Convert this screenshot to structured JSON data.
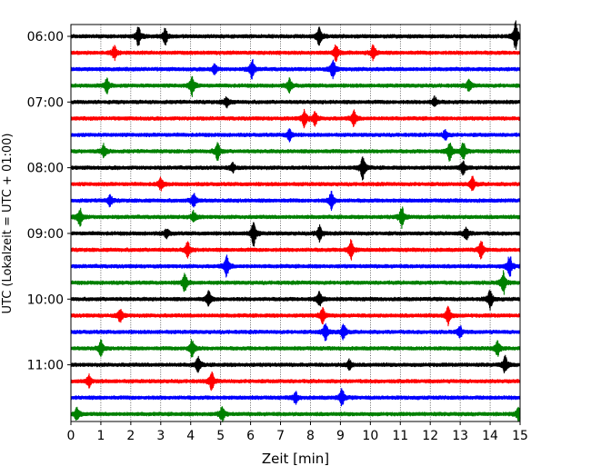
{
  "chart_data": {
    "type": "line",
    "title": "",
    "xlabel": "Zeit  [min]",
    "ylabel": "UTC (Lokalzeit = UTC + 01:00)",
    "xlim": [
      0,
      15
    ],
    "x_ticks": [
      "0",
      "1",
      "2",
      "3",
      "4",
      "5",
      "6",
      "7",
      "8",
      "9",
      "10",
      "11",
      "12",
      "13",
      "14",
      "15"
    ],
    "y_ticks": [
      "06:00",
      "07:00",
      "08:00",
      "09:00",
      "10:00",
      "11:00"
    ],
    "grid": "vertical dotted lines at every minute",
    "trace_colors": [
      "#000000",
      "#ff0000",
      "#0000ff",
      "#008000"
    ],
    "traces": [
      {
        "start": "06:00",
        "color": "#000000",
        "events": [
          {
            "t": 2.25,
            "a": 1.0
          },
          {
            "t": 3.15,
            "a": 0.9
          },
          {
            "t": 8.3,
            "a": 1.1
          },
          {
            "t": 14.85,
            "a": 1.5
          }
        ]
      },
      {
        "start": "06:15",
        "color": "#ff0000",
        "events": [
          {
            "t": 1.45,
            "a": 0.7
          },
          {
            "t": 8.85,
            "a": 0.8
          },
          {
            "t": 10.1,
            "a": 0.8
          }
        ]
      },
      {
        "start": "06:30",
        "color": "#0000ff",
        "events": [
          {
            "t": 6.05,
            "a": 1.0
          },
          {
            "t": 8.75,
            "a": 1.0
          },
          {
            "t": 4.8,
            "a": 0.5
          }
        ]
      },
      {
        "start": "06:45",
        "color": "#008000",
        "events": [
          {
            "t": 1.2,
            "a": 0.8
          },
          {
            "t": 4.05,
            "a": 1.0
          },
          {
            "t": 7.3,
            "a": 0.7
          },
          {
            "t": 13.3,
            "a": 0.6
          }
        ]
      },
      {
        "start": "07:00",
        "color": "#000000",
        "events": [
          {
            "t": 5.2,
            "a": 0.6
          },
          {
            "t": 12.15,
            "a": 0.5
          }
        ]
      },
      {
        "start": "07:15",
        "color": "#ff0000",
        "events": [
          {
            "t": 7.8,
            "a": 0.9
          },
          {
            "t": 8.15,
            "a": 0.7
          },
          {
            "t": 9.45,
            "a": 0.8
          }
        ]
      },
      {
        "start": "07:30",
        "color": "#0000ff",
        "events": [
          {
            "t": 7.3,
            "a": 0.6
          },
          {
            "t": 12.5,
            "a": 0.5
          }
        ]
      },
      {
        "start": "07:45",
        "color": "#008000",
        "events": [
          {
            "t": 1.1,
            "a": 0.7
          },
          {
            "t": 4.9,
            "a": 0.9
          },
          {
            "t": 12.65,
            "a": 1.0
          },
          {
            "t": 13.1,
            "a": 0.9
          }
        ]
      },
      {
        "start": "08:00",
        "color": "#000000",
        "events": [
          {
            "t": 9.75,
            "a": 1.3
          },
          {
            "t": 13.1,
            "a": 0.7
          },
          {
            "t": 5.4,
            "a": 0.5
          }
        ]
      },
      {
        "start": "08:15",
        "color": "#ff0000",
        "events": [
          {
            "t": 3.0,
            "a": 0.6
          },
          {
            "t": 13.4,
            "a": 0.8
          }
        ]
      },
      {
        "start": "08:30",
        "color": "#0000ff",
        "events": [
          {
            "t": 1.3,
            "a": 0.6
          },
          {
            "t": 4.1,
            "a": 0.8
          },
          {
            "t": 8.7,
            "a": 0.9
          }
        ]
      },
      {
        "start": "08:45",
        "color": "#008000",
        "events": [
          {
            "t": 0.3,
            "a": 1.0
          },
          {
            "t": 4.1,
            "a": 0.6
          },
          {
            "t": 11.05,
            "a": 1.1
          }
        ]
      },
      {
        "start": "09:00",
        "color": "#000000",
        "events": [
          {
            "t": 6.1,
            "a": 1.3
          },
          {
            "t": 8.3,
            "a": 0.8
          },
          {
            "t": 13.2,
            "a": 0.7
          },
          {
            "t": 3.2,
            "a": 0.5
          }
        ]
      },
      {
        "start": "09:15",
        "color": "#ff0000",
        "events": [
          {
            "t": 3.9,
            "a": 0.8
          },
          {
            "t": 9.35,
            "a": 1.0
          },
          {
            "t": 13.7,
            "a": 0.9
          }
        ]
      },
      {
        "start": "09:30",
        "color": "#0000ff",
        "events": [
          {
            "t": 5.2,
            "a": 1.1
          },
          {
            "t": 14.65,
            "a": 1.2
          }
        ]
      },
      {
        "start": "09:45",
        "color": "#008000",
        "events": [
          {
            "t": 3.8,
            "a": 0.9
          },
          {
            "t": 14.45,
            "a": 1.2
          }
        ]
      },
      {
        "start": "10:00",
        "color": "#000000",
        "events": [
          {
            "t": 4.6,
            "a": 0.8
          },
          {
            "t": 8.3,
            "a": 0.8
          },
          {
            "t": 14.0,
            "a": 1.0
          }
        ]
      },
      {
        "start": "10:15",
        "color": "#ff0000",
        "events": [
          {
            "t": 1.65,
            "a": 0.7
          },
          {
            "t": 8.4,
            "a": 0.8
          },
          {
            "t": 12.6,
            "a": 1.0
          }
        ]
      },
      {
        "start": "10:30",
        "color": "#0000ff",
        "events": [
          {
            "t": 8.5,
            "a": 1.0
          },
          {
            "t": 9.1,
            "a": 0.9
          },
          {
            "t": 13.0,
            "a": 0.6
          }
        ]
      },
      {
        "start": "10:45",
        "color": "#008000",
        "events": [
          {
            "t": 1.0,
            "a": 0.8
          },
          {
            "t": 4.05,
            "a": 1.0
          },
          {
            "t": 14.25,
            "a": 0.8
          }
        ]
      },
      {
        "start": "11:00",
        "color": "#000000",
        "events": [
          {
            "t": 4.25,
            "a": 0.8
          },
          {
            "t": 14.5,
            "a": 0.9
          },
          {
            "t": 9.3,
            "a": 0.5
          }
        ]
      },
      {
        "start": "11:15",
        "color": "#ff0000",
        "events": [
          {
            "t": 0.6,
            "a": 0.6
          },
          {
            "t": 4.7,
            "a": 0.9
          }
        ]
      },
      {
        "start": "11:30",
        "color": "#0000ff",
        "events": [
          {
            "t": 7.5,
            "a": 0.6
          },
          {
            "t": 9.05,
            "a": 0.9
          }
        ]
      },
      {
        "start": "11:45",
        "color": "#008000",
        "events": [
          {
            "t": 0.2,
            "a": 0.7
          },
          {
            "t": 5.05,
            "a": 0.8
          },
          {
            "t": 14.95,
            "a": 0.8
          }
        ]
      }
    ]
  }
}
